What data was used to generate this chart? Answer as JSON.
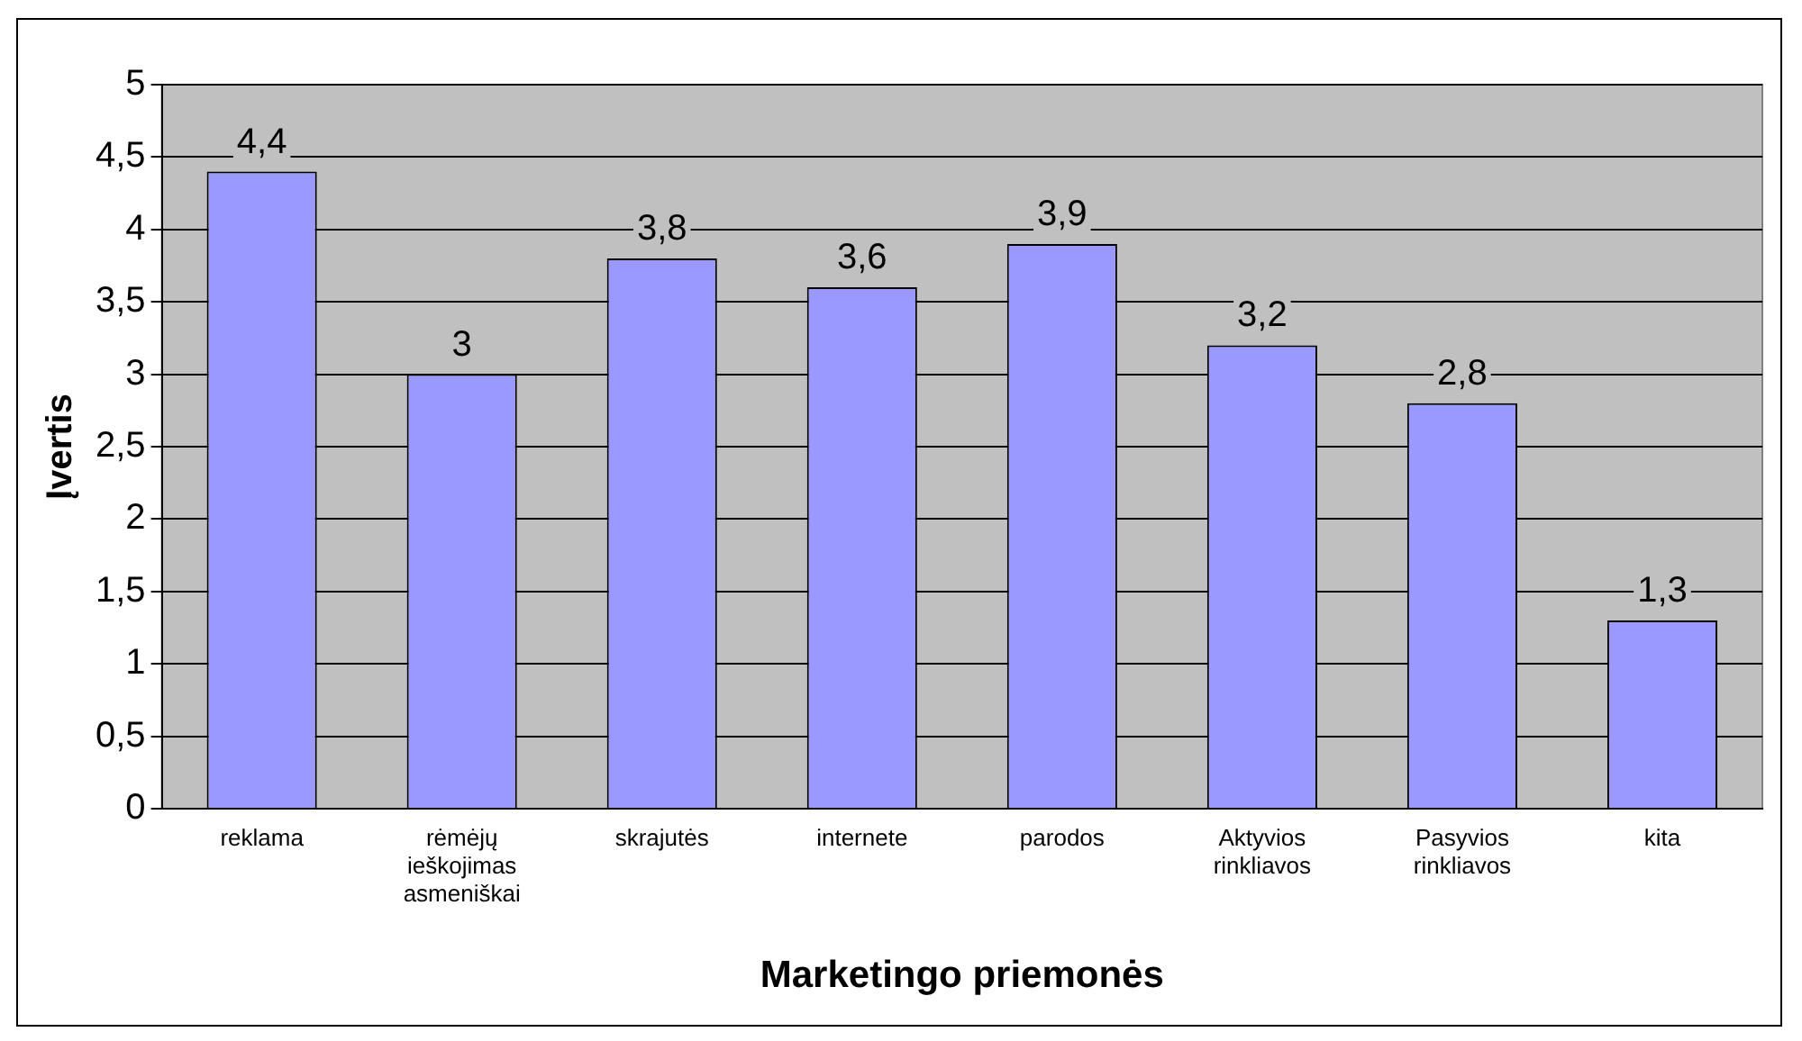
{
  "chart_data": {
    "type": "bar",
    "xlabel": "Marketingo priemonės",
    "ylabel": "Įvertis",
    "categories": [
      "reklama",
      "rėmėjų ieškojimas asmeniškai",
      "skrajutės",
      "internete",
      "parodos",
      "Aktyvios rinkliavos",
      "Pasyvios rinkliavos",
      "kita"
    ],
    "values": [
      4.4,
      3,
      3.8,
      3.6,
      3.9,
      3.2,
      2.8,
      1.3
    ],
    "value_labels": [
      "4,4",
      "3",
      "3,8",
      "3,6",
      "3,9",
      "3,2",
      "2,8",
      "1,3"
    ],
    "color": "#9999ff",
    "ylim": [
      0,
      5
    ],
    "yticks": [
      0,
      {
        "value": 0.5,
        "label": "0,5"
      },
      1,
      {
        "value": 1.5,
        "label": "1,5"
      },
      2,
      {
        "value": 2.5,
        "label": "2,5"
      },
      3,
      {
        "value": 3.5,
        "label": "3,5"
      },
      4,
      {
        "value": 4.5,
        "label": "4,5"
      },
      5
    ],
    "grid": "y",
    "legend": false
  }
}
